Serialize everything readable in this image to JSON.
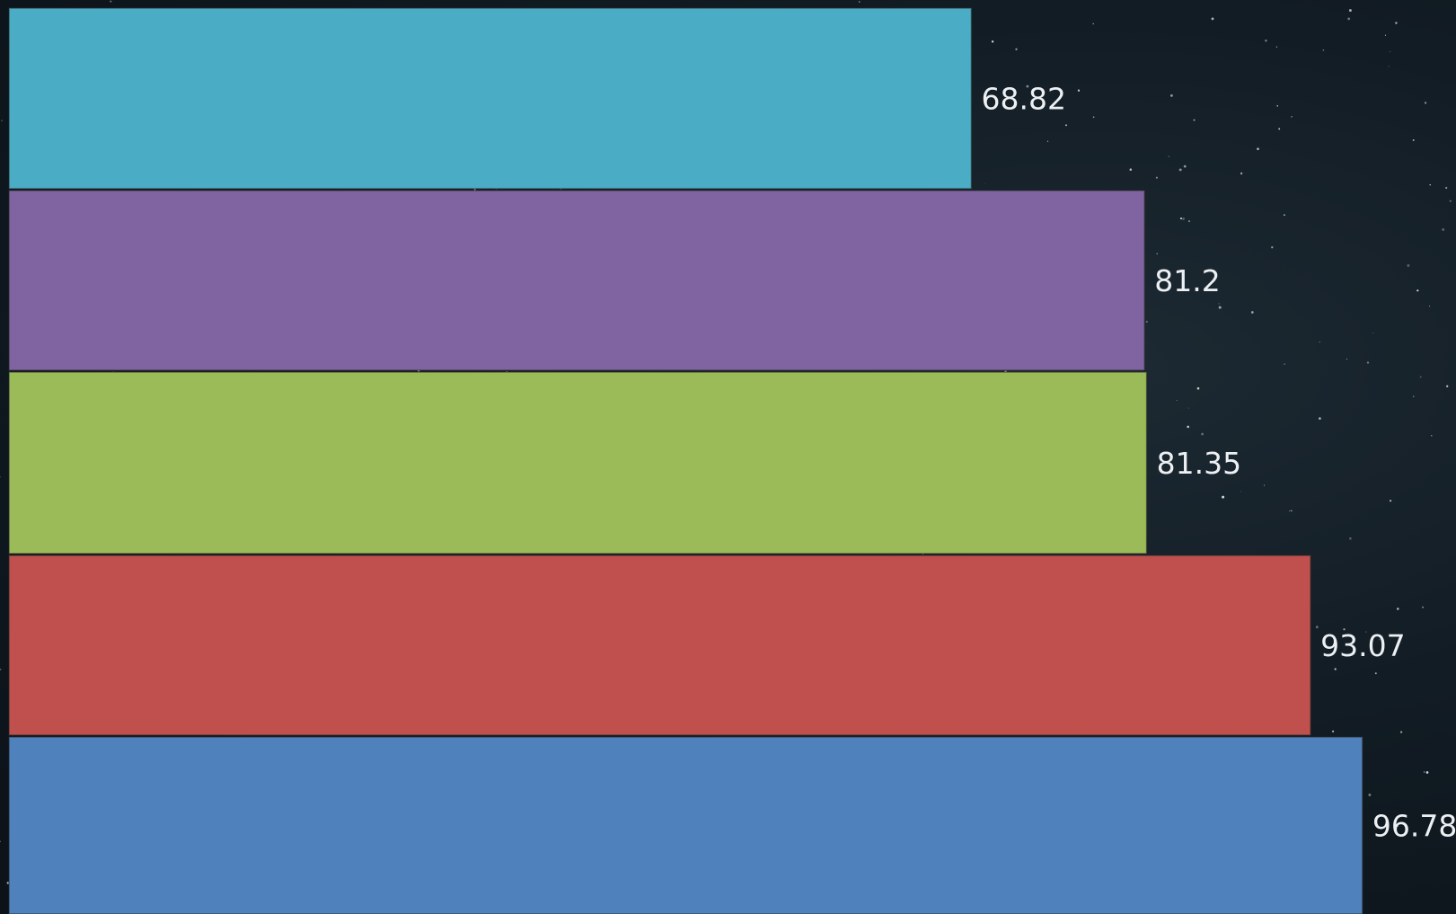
{
  "chart_data": {
    "type": "bar",
    "orientation": "horizontal",
    "values": [
      68.82,
      81.2,
      81.35,
      93.07,
      96.78
    ],
    "labels": [
      "68.82",
      "81.2",
      "81.35",
      "93.07",
      "96.78"
    ],
    "colors": [
      "#4bacc6",
      "#8064a2",
      "#9bbb59",
      "#c0504d",
      "#4f81bd"
    ],
    "background": "starfield",
    "title": "",
    "xlabel": "",
    "ylabel": "",
    "grid": false,
    "legend": "none"
  }
}
